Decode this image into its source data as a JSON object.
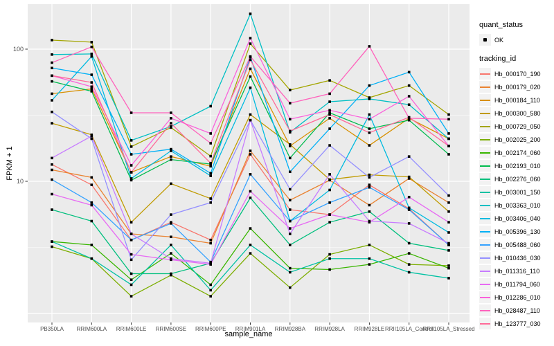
{
  "figure": {
    "background": "#FFFFFF",
    "panel_bg": "#EBEBEB",
    "grid_color": "#FFFFFF",
    "axis_text_color": "#4D4D4D",
    "tick_color": "#333333"
  },
  "axes": {
    "x_title": "sample_name",
    "y_title": "FPKM + 1",
    "y_ticks": [
      {
        "label": "100",
        "value": 100
      },
      {
        "label": "10",
        "value": 10
      }
    ]
  },
  "legend": {
    "quant_title": "quant_status",
    "quant_items": [
      {
        "label": "OK",
        "marker": "black-point"
      }
    ],
    "tracking_title": "tracking_id"
  },
  "chart_data": {
    "type": "line",
    "title": "",
    "xlabel": "sample_name",
    "ylabel": "FPKM + 1",
    "y_scale": "log10",
    "ylim": [
      0.85,
      220
    ],
    "grid": "on",
    "legend_position": "right",
    "point_marker": "black-square",
    "quant_status": "OK",
    "categories": [
      "PB350LA",
      "RRIM600LA",
      "RRIM600LE",
      "RRIM600SE",
      "RRIM600PE",
      "RRIM901LA",
      "RRIM928BA",
      "RRIM928LA",
      "RRIM928LE",
      "RRII105LA_Control",
      "RRII105LA_Stressed"
    ],
    "series": [
      {
        "name": "Hb_000170_190",
        "color": "#F8766D",
        "values": [
          13.4,
          9.4,
          3.6,
          4.9,
          3.6,
          16,
          6.1,
          5.6,
          9.4,
          6.2,
          3.3
        ]
      },
      {
        "name": "Hb_000179_020",
        "color": "#EA8331",
        "values": [
          12.2,
          10.7,
          4.0,
          3.8,
          3.4,
          17,
          7.2,
          10.2,
          6.6,
          10.5,
          6.9
        ]
      },
      {
        "name": "Hb_000184_110",
        "color": "#D89000",
        "values": [
          46,
          50,
          11.7,
          15.4,
          13,
          71,
          18.5,
          30,
          18.7,
          30,
          21
        ]
      },
      {
        "name": "Hb_000300_580",
        "color": "#C09B00",
        "values": [
          27.5,
          22.5,
          4.9,
          9.6,
          7.4,
          32,
          19,
          10.3,
          11.2,
          10.8,
          5.9
        ]
      },
      {
        "name": "Hb_000729_050",
        "color": "#A3A500",
        "values": [
          117,
          113,
          18.3,
          25.5,
          15.5,
          110,
          49,
          58,
          43,
          53,
          32
        ]
      },
      {
        "name": "Hb_002025_200",
        "color": "#7CAE00",
        "values": [
          3.2,
          2.6,
          1.35,
          1.95,
          1.35,
          2.85,
          1.57,
          2.8,
          3.3,
          2.35,
          2.3
        ]
      },
      {
        "name": "Hb_002174_060",
        "color": "#39B600",
        "values": [
          3.5,
          3.3,
          1.8,
          2.85,
          1.65,
          4.4,
          2.2,
          2.15,
          2.35,
          2.85,
          2.2
        ]
      },
      {
        "name": "Hb_002193_010",
        "color": "#00BB4E",
        "values": [
          57,
          48,
          10.2,
          14.6,
          13.5,
          62,
          15,
          33,
          25,
          29,
          16
        ]
      },
      {
        "name": "Hb_002276_060",
        "color": "#00BF7D",
        "values": [
          6.1,
          5.0,
          2.0,
          2.0,
          2.4,
          7.5,
          3.3,
          4.9,
          5.9,
          3.4,
          3.0
        ]
      },
      {
        "name": "Hb_003001_150",
        "color": "#00C1A3",
        "values": [
          3.5,
          2.6,
          1.65,
          3.3,
          1.5,
          3.3,
          2.05,
          2.6,
          2.6,
          2.05,
          1.85
        ]
      },
      {
        "name": "Hb_003363_010",
        "color": "#00BFC4",
        "values": [
          91,
          92,
          20.4,
          26,
          37,
          185,
          23.5,
          40,
          42,
          38,
          21
        ]
      },
      {
        "name": "Hb_003406_040",
        "color": "#00BAE0",
        "values": [
          41,
          88,
          10.5,
          17,
          11,
          51,
          5.0,
          8.6,
          32,
          6.3,
          4.1
        ]
      },
      {
        "name": "Hb_005396_130",
        "color": "#00B0F6",
        "values": [
          72,
          64,
          16,
          17.5,
          11.5,
          87,
          11.8,
          25,
          53,
          67,
          23
        ]
      },
      {
        "name": "Hb_005488_060",
        "color": "#35A2FF",
        "values": [
          10.3,
          6.9,
          3.6,
          4.8,
          2.45,
          11.3,
          5.0,
          6.9,
          9.0,
          6.1,
          3.3
        ]
      },
      {
        "name": "Hb_010436_030",
        "color": "#9590FF",
        "values": [
          33.5,
          21,
          2.55,
          5.6,
          6.9,
          29,
          8.7,
          18.7,
          10.7,
          15.4,
          7.8
        ]
      },
      {
        "name": "Hb_011316_110",
        "color": "#C77CFF",
        "values": [
          15,
          22,
          4.0,
          2.6,
          2.4,
          29,
          4.0,
          11.3,
          5.0,
          4.8,
          3.4
        ]
      },
      {
        "name": "Hb_011794_060",
        "color": "#E76BF3",
        "values": [
          8.0,
          6.6,
          2.8,
          2.55,
          2.35,
          8.4,
          4.4,
          5.6,
          4.9,
          7.6,
          4.9
        ]
      },
      {
        "name": "Hb_012286_010",
        "color": "#FA62DB",
        "values": [
          63,
          52,
          13.2,
          30,
          23,
          121,
          29.5,
          34.5,
          29.5,
          44,
          18.5
        ]
      },
      {
        "name": "Hb_028487_110",
        "color": "#FF62BC",
        "values": [
          79,
          104,
          33,
          33,
          19.4,
          88,
          39,
          46,
          105,
          30,
          29.5
        ]
      },
      {
        "name": "Hb_123777_030",
        "color": "#FF6A98",
        "values": [
          63,
          56,
          11.7,
          27.5,
          13.7,
          83,
          24,
          32,
          23.3,
          30.5,
          18.5
        ]
      }
    ]
  }
}
